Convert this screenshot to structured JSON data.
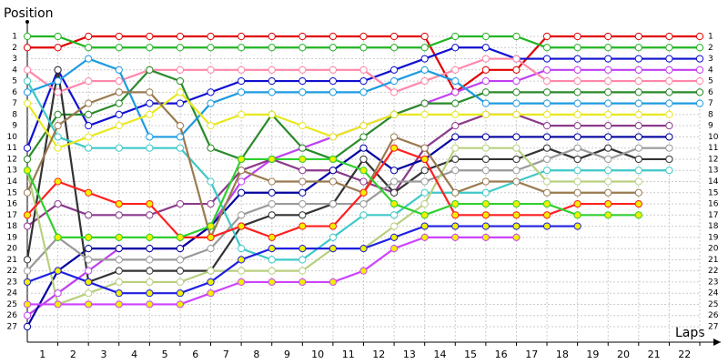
{
  "chart_data": {
    "type": "line",
    "y_label": "Position",
    "x_label": "Laps",
    "x": [
      0,
      1,
      2,
      3,
      4,
      5,
      6,
      7,
      8,
      9,
      10,
      11,
      12,
      13,
      14,
      15,
      16,
      17,
      18,
      19,
      20,
      21,
      22
    ],
    "xlim": [
      0,
      22
    ],
    "xticks": [
      1,
      2,
      3,
      4,
      5,
      6,
      7,
      8,
      9,
      10,
      11,
      12,
      13,
      14,
      15,
      16,
      17,
      18,
      19,
      20,
      21,
      22
    ],
    "ylim": [
      1,
      27
    ],
    "yticks": [
      1,
      2,
      3,
      4,
      5,
      6,
      7,
      8,
      9,
      10,
      11,
      12,
      13,
      14,
      15,
      16,
      17,
      18,
      19,
      20,
      21,
      22,
      23,
      24,
      25,
      26,
      27
    ],
    "y_inverted": true,
    "grid": true,
    "series": [
      {
        "color": "#e00000",
        "marker": "#ffffff",
        "values": [
          2,
          2,
          1,
          1,
          1,
          1,
          1,
          1,
          1,
          1,
          1,
          1,
          1,
          1,
          6,
          4,
          4,
          1,
          1,
          1,
          1,
          1,
          1
        ]
      },
      {
        "color": "#22b422",
        "marker": "#ffffff",
        "values": [
          1,
          1,
          2,
          2,
          2,
          2,
          2,
          2,
          2,
          2,
          2,
          2,
          2,
          2,
          1,
          1,
          1,
          2,
          2,
          2,
          2,
          2,
          2
        ]
      },
      {
        "color": "#1010d0",
        "marker": "#ffffff",
        "values": [
          11,
          4,
          9,
          8,
          7,
          7,
          6,
          5,
          5,
          5,
          5,
          5,
          4,
          3,
          2,
          2,
          3,
          3,
          3,
          3,
          3,
          3,
          3
        ]
      },
      {
        "color": "#c040f0",
        "marker": "#ffffff",
        "values": [
          26,
          24,
          22,
          20,
          20,
          20,
          18,
          14,
          12,
          11,
          10,
          9,
          8,
          7,
          6,
          5,
          5,
          4,
          4,
          4,
          4,
          4,
          4
        ]
      },
      {
        "color": "#ff88aa",
        "marker": "#ffffff",
        "values": [
          4,
          6,
          5,
          5,
          4,
          4,
          4,
          4,
          4,
          4,
          4,
          4,
          6,
          5,
          4,
          3,
          3,
          5,
          5,
          5,
          5,
          5,
          5
        ]
      },
      {
        "color": "#2a8a2a",
        "marker": "#ffffff",
        "values": [
          12,
          8,
          8,
          7,
          4,
          5,
          11,
          12,
          8,
          11,
          12,
          10,
          8,
          7,
          7,
          6,
          6,
          6,
          6,
          6,
          6,
          6,
          6
        ]
      },
      {
        "color": "#1e9be0",
        "marker": "#ffffff",
        "values": [
          6,
          5,
          3,
          4,
          10,
          10,
          7,
          6,
          6,
          6,
          6,
          6,
          5,
          4,
          5,
          7,
          7,
          7,
          7,
          7,
          7,
          7,
          7
        ]
      },
      {
        "color": "#8b3a8b",
        "marker": "#ffffff",
        "values": [
          18,
          16,
          17,
          17,
          17,
          16,
          16,
          13,
          12,
          13,
          13,
          14,
          15,
          11,
          9,
          8,
          8,
          9,
          9,
          9,
          9,
          9,
          null
        ]
      },
      {
        "color": "#0000a0",
        "marker": "#ffffff",
        "values": [
          27,
          22,
          20,
          20,
          20,
          20,
          18,
          15,
          15,
          15,
          13,
          11,
          13,
          12,
          10,
          10,
          10,
          10,
          10,
          10,
          10,
          10,
          null
        ]
      },
      {
        "color": "#333333",
        "marker": "#ffffff",
        "values": [
          21,
          4,
          23,
          22,
          22,
          22,
          22,
          18,
          17,
          17,
          16,
          12,
          15,
          13,
          12,
          12,
          12,
          11,
          12,
          11,
          12,
          12,
          null
        ]
      },
      {
        "color": "#9a9a9a",
        "marker": "#ffffff",
        "values": [
          22,
          19,
          21,
          21,
          21,
          21,
          20,
          17,
          16,
          16,
          16,
          16,
          14,
          14,
          13,
          13,
          13,
          12,
          11,
          12,
          11,
          11,
          null
        ]
      },
      {
        "color": "#40c8c8",
        "marker": "#ffffff",
        "values": [
          5,
          10,
          11,
          11,
          11,
          11,
          14,
          20,
          21,
          21,
          19,
          17,
          17,
          15,
          15,
          15,
          14,
          13,
          13,
          13,
          13,
          13,
          null
        ]
      },
      {
        "color": "#e8e820",
        "marker": "#ffffff",
        "values": [
          7,
          11,
          10,
          9,
          8,
          6,
          9,
          8,
          8,
          9,
          10,
          9,
          8,
          8,
          8,
          8,
          8,
          8,
          8,
          8,
          8,
          8,
          null
        ]
      },
      {
        "color": "#b8d080",
        "marker": "#ffffff",
        "values": [
          13,
          25,
          24,
          23,
          23,
          23,
          22,
          22,
          22,
          22,
          20,
          20,
          18,
          16,
          11,
          11,
          11,
          14,
          14,
          14,
          14,
          null,
          null
        ]
      },
      {
        "color": "#9a7a50",
        "marker": "#ffffff",
        "values": [
          15,
          9,
          7,
          6,
          6,
          9,
          19,
          13,
          14,
          14,
          14,
          15,
          10,
          11,
          15,
          14,
          14,
          15,
          15,
          15,
          15,
          null,
          null
        ]
      },
      {
        "color": "#ff2020",
        "marker": "#f0f000",
        "values": [
          17,
          14,
          15,
          16,
          16,
          19,
          19,
          18,
          19,
          18,
          18,
          15,
          11,
          12,
          17,
          17,
          17,
          17,
          16,
          16,
          16,
          null,
          null
        ]
      },
      {
        "color": "#30d030",
        "marker": "#f0f000",
        "values": [
          13,
          19,
          19,
          19,
          19,
          19,
          18,
          12,
          12,
          12,
          12,
          13,
          16,
          17,
          16,
          16,
          16,
          16,
          17,
          17,
          17,
          null,
          null
        ]
      },
      {
        "color": "#2020e0",
        "marker": "#f0f000",
        "values": [
          23,
          22,
          23,
          24,
          24,
          24,
          23,
          21,
          20,
          20,
          20,
          20,
          19,
          18,
          18,
          18,
          18,
          18,
          18,
          null,
          null,
          null,
          null
        ]
      },
      {
        "color": "#cc44ff",
        "marker": "#f0f000",
        "values": [
          25,
          25,
          25,
          25,
          25,
          25,
          24,
          23,
          23,
          23,
          23,
          22,
          20,
          19,
          19,
          19,
          19,
          null,
          null,
          null,
          null,
          null,
          null
        ]
      }
    ]
  }
}
